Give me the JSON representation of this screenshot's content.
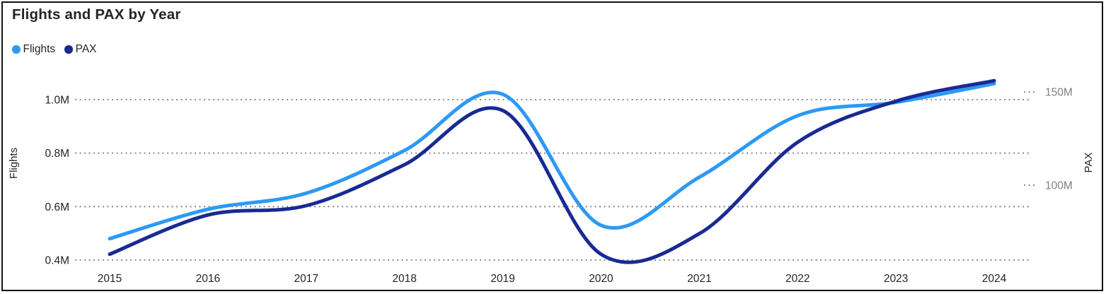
{
  "window": {
    "background": "#ffffff",
    "border_color": "#111111"
  },
  "header": {
    "title": "Flights and PAX by Year"
  },
  "legend": {
    "position": "top-left",
    "items": [
      {
        "label": "Flights",
        "color": "#2C99F7"
      },
      {
        "label": "PAX",
        "color": "#182A93"
      }
    ]
  },
  "chart_data": {
    "type": "line",
    "smooth": true,
    "grid": "dotted",
    "grid_color": "#8f8f8f",
    "title": "Flights and PAX by Year",
    "legend_position": "top-left",
    "x": [
      2015,
      2016,
      2017,
      2018,
      2019,
      2020,
      2021,
      2022,
      2023,
      2024
    ],
    "series": [
      {
        "name": "Flights",
        "axis": "left",
        "color": "#2C99F7",
        "values_millions": [
          0.48,
          0.59,
          0.65,
          0.81,
          1.02,
          0.53,
          0.71,
          0.94,
          0.99,
          1.06
        ]
      },
      {
        "name": "PAX",
        "axis": "right",
        "color": "#182A93",
        "values_millions": [
          63,
          84,
          89,
          111,
          140,
          63,
          74,
          123,
          145,
          156
        ]
      }
    ],
    "left_axis": {
      "title": "Flights",
      "tick_labels": [
        "1.0M",
        "0.8M",
        "0.6M",
        "0.4M"
      ],
      "tick_values": [
        1.0,
        0.8,
        0.6,
        0.4
      ],
      "range": [
        0.4,
        1.0
      ]
    },
    "right_axis": {
      "title": "PAX",
      "tick_labels": [
        "150M",
        "100M"
      ],
      "tick_values": [
        150,
        100
      ],
      "range": [
        100,
        150
      ]
    },
    "x_axis": {
      "tick_labels": [
        "2015",
        "2016",
        "2017",
        "2018",
        "2019",
        "2020",
        "2021",
        "2022",
        "2023",
        "2024"
      ]
    }
  }
}
